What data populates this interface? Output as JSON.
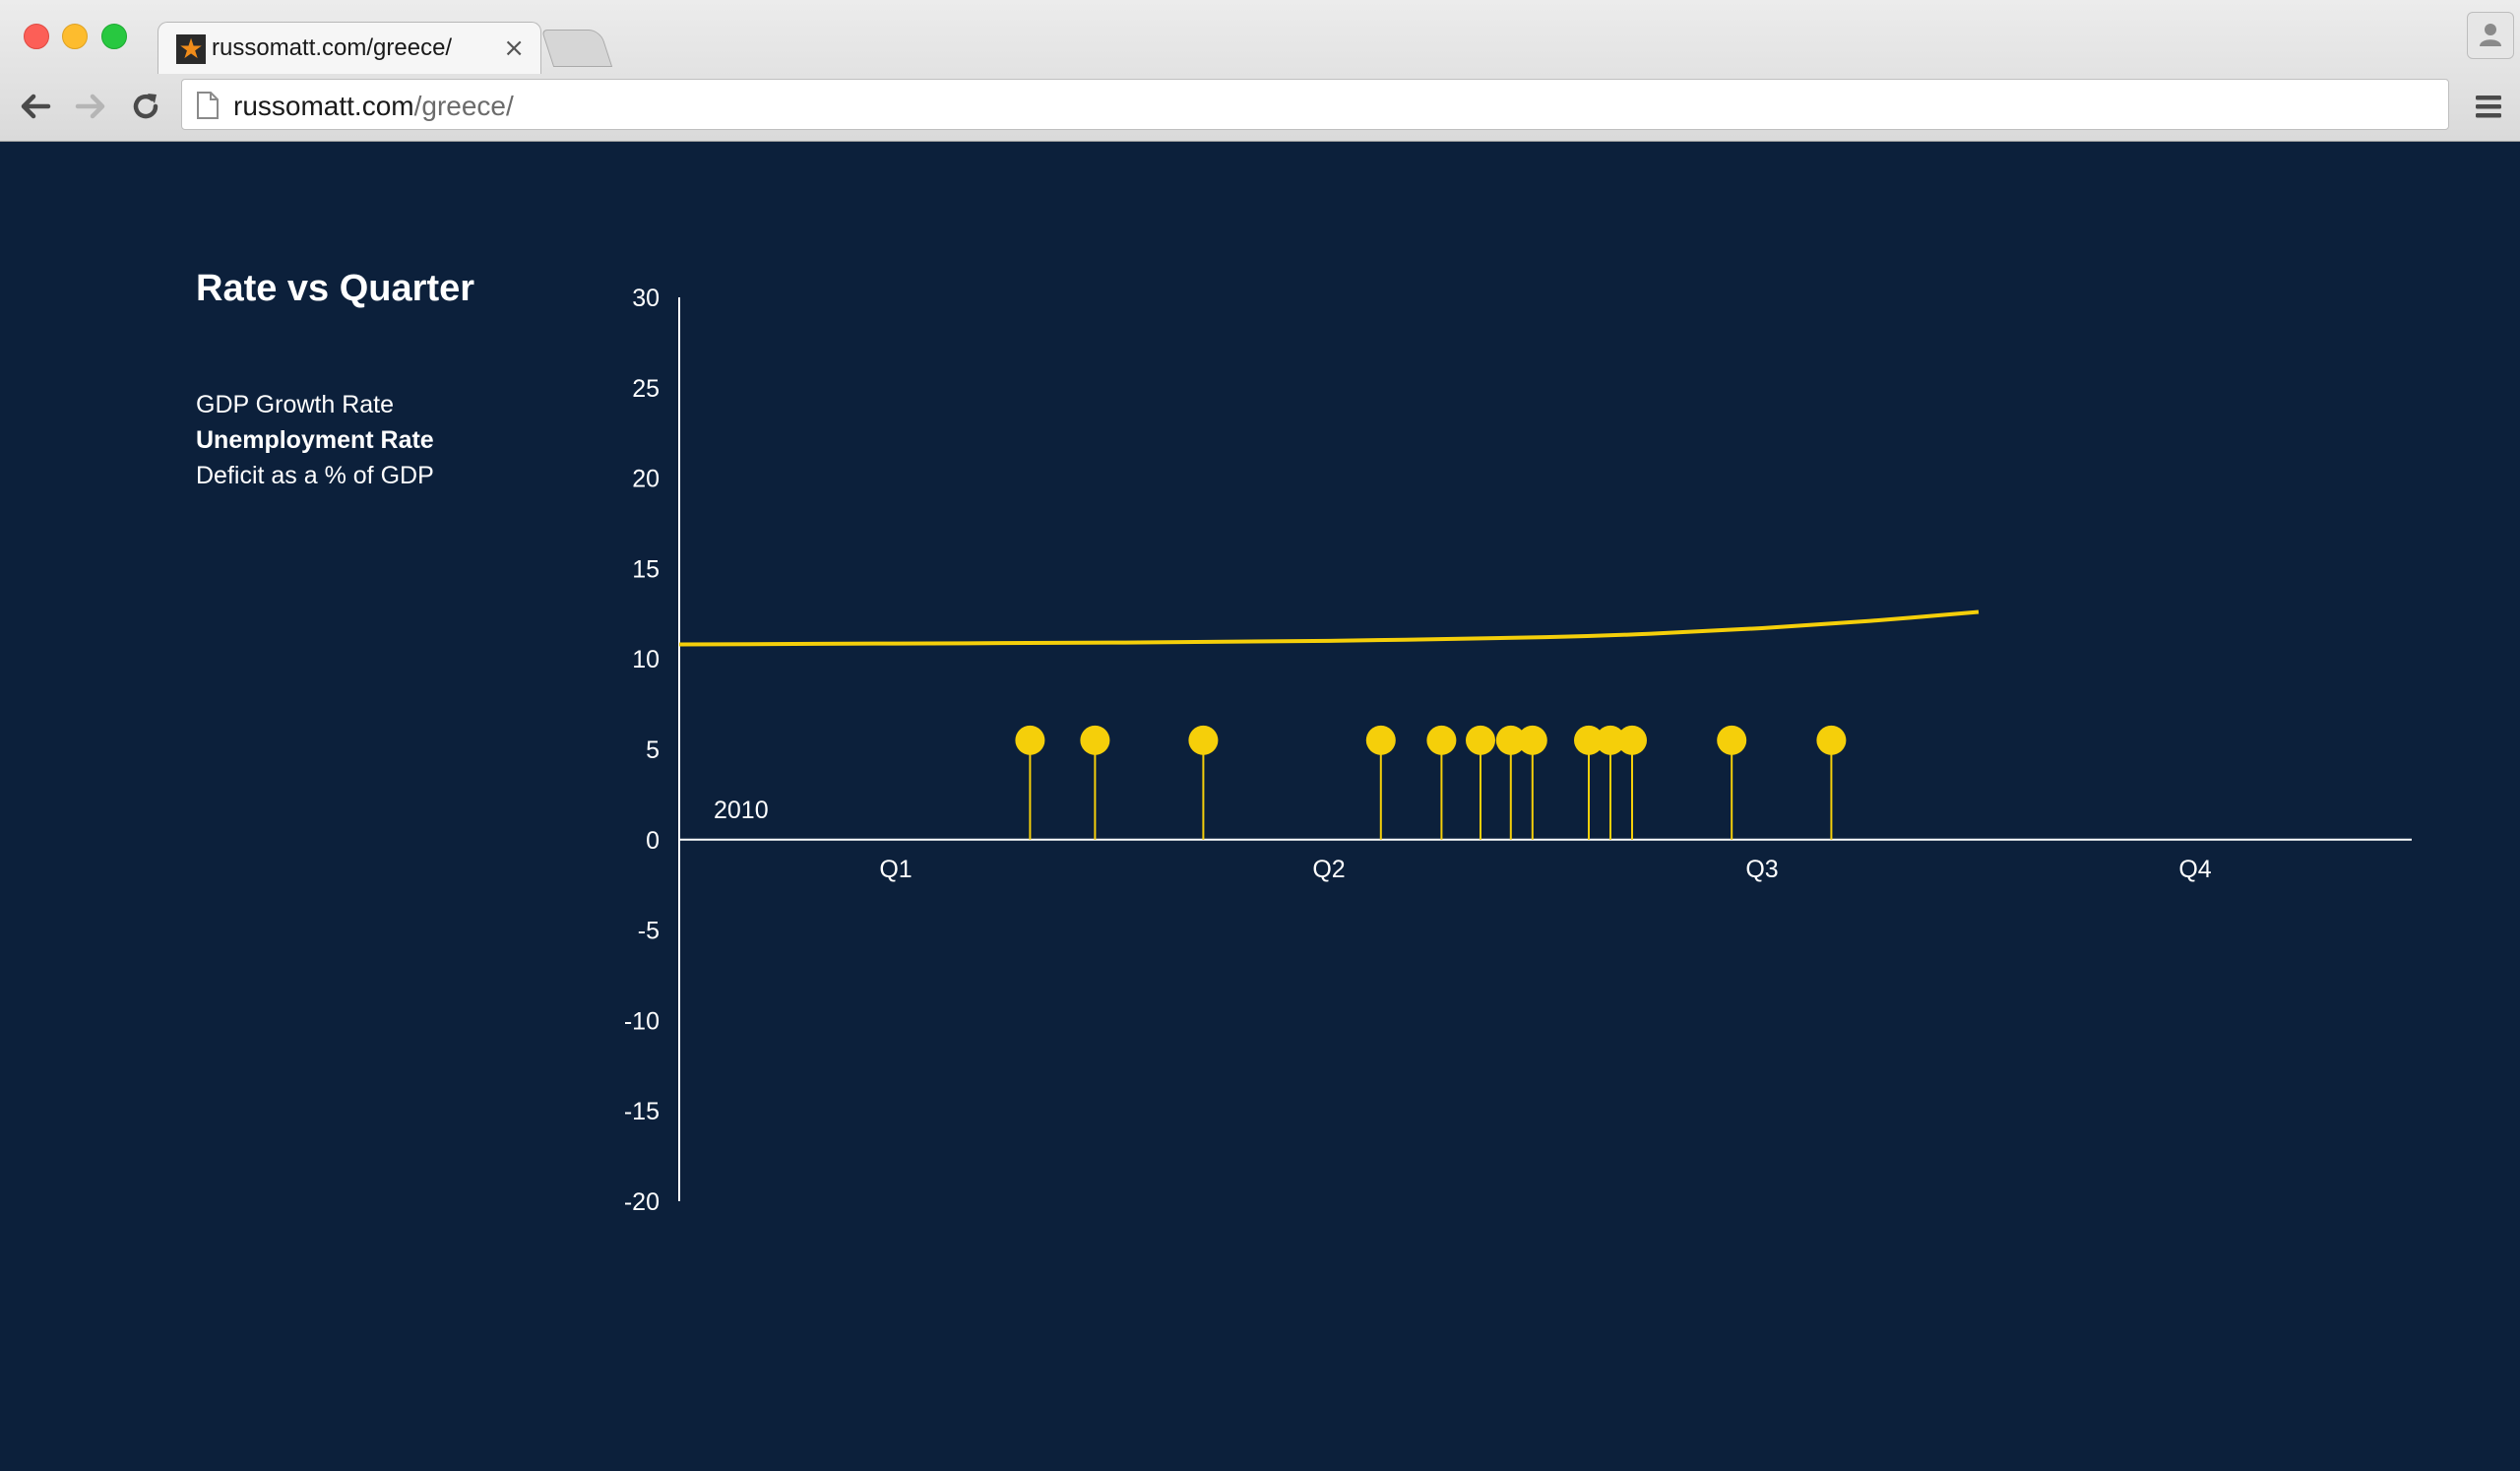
{
  "browser": {
    "tab_title": "russomatt.com/greece/",
    "url_domain": "russomatt.com",
    "url_path": "/greece/"
  },
  "page": {
    "title": "Rate vs Quarter",
    "metrics": [
      {
        "label": "GDP Growth Rate",
        "active": false
      },
      {
        "label": "Unemployment Rate",
        "active": true
      },
      {
        "label": "Deficit as a % of GDP",
        "active": false
      }
    ]
  },
  "colors": {
    "background": "#0c203b",
    "accent": "#f5cf0a",
    "axis": "#ffffff"
  },
  "chart_data": {
    "type": "line",
    "title": "Rate vs Quarter",
    "xlabel": "",
    "ylabel": "",
    "year_label": "2010",
    "x_categories": [
      "Q1",
      "Q2",
      "Q3",
      "Q4"
    ],
    "xlim": [
      0,
      4
    ],
    "ylim": [
      -20,
      30
    ],
    "y_ticks": [
      "30",
      "25",
      "20",
      "15",
      "10",
      "5",
      "0",
      "-5",
      "-10",
      "-15",
      "-20"
    ],
    "grid": false,
    "series": [
      {
        "x": [
          0,
          0.5,
          1.0,
          1.5,
          2.0,
          2.25,
          2.5,
          2.75,
          3.0
        ],
        "y": [
          10.8,
          10.85,
          10.9,
          11.0,
          11.2,
          11.4,
          11.7,
          12.1,
          12.6
        ]
      }
    ],
    "event_markers": {
      "value": 5.5,
      "x": [
        0.81,
        0.96,
        1.21,
        1.62,
        1.76,
        1.85,
        1.92,
        1.97,
        2.1,
        2.15,
        2.2,
        2.43,
        2.66
      ]
    }
  }
}
